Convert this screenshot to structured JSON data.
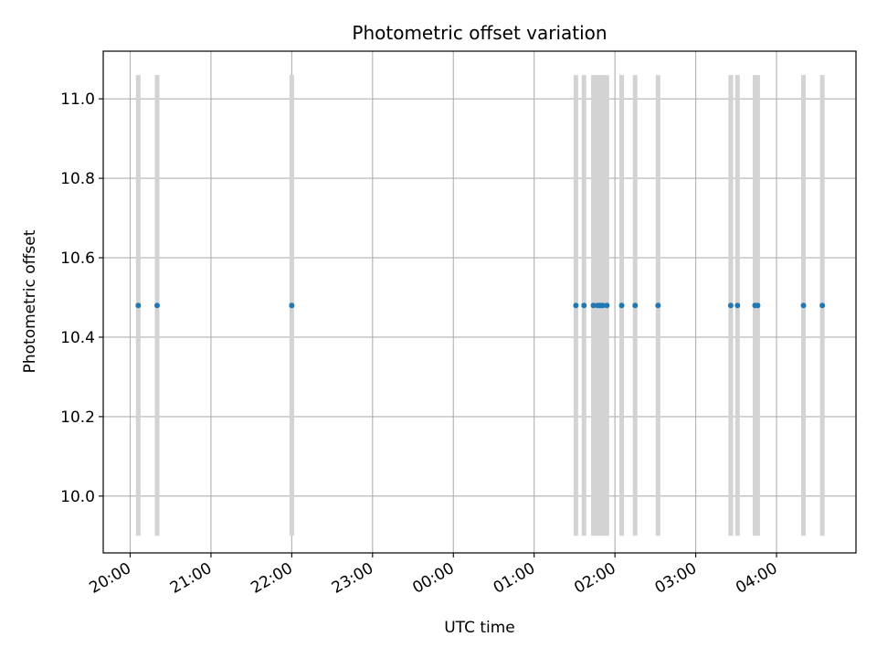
{
  "chart_data": {
    "type": "scatter",
    "title": "Photometric offset variation",
    "xlabel": "UTC time",
    "ylabel": "Photometric offset",
    "grid": true,
    "x_ticks": [
      "20:00",
      "21:00",
      "22:00",
      "23:00",
      "00:00",
      "01:00",
      "02:00",
      "03:00",
      "04:00"
    ],
    "xlim": [
      "19:40",
      "04:59"
    ],
    "y_ticks": [
      "10.0",
      "10.2",
      "10.4",
      "10.6",
      "10.8",
      "11.0"
    ],
    "ylim": [
      9.857,
      11.12
    ],
    "point_color": "#1f77b4",
    "error_bar_color": "#d3d3d3",
    "points": [
      {
        "x": "20:06",
        "y": 10.48,
        "y_low": 9.9,
        "y_high": 11.06
      },
      {
        "x": "20:20",
        "y": 10.48,
        "y_low": 9.9,
        "y_high": 11.06
      },
      {
        "x": "22:00",
        "y": 10.48,
        "y_low": 9.9,
        "y_high": 11.06
      },
      {
        "x": "01:31",
        "y": 10.48,
        "y_low": 9.9,
        "y_high": 11.06
      },
      {
        "x": "01:37",
        "y": 10.48,
        "y_low": 9.9,
        "y_high": 11.06
      },
      {
        "x": "01:44",
        "y": 10.48,
        "y_low": 9.9,
        "y_high": 11.06
      },
      {
        "x": "01:47",
        "y": 10.48,
        "y_low": 9.9,
        "y_high": 11.06
      },
      {
        "x": "01:49",
        "y": 10.48,
        "y_low": 9.9,
        "y_high": 11.06
      },
      {
        "x": "01:51",
        "y": 10.48,
        "y_low": 9.9,
        "y_high": 11.06
      },
      {
        "x": "01:54",
        "y": 10.48,
        "y_low": 9.9,
        "y_high": 11.06
      },
      {
        "x": "02:05",
        "y": 10.48,
        "y_low": 9.9,
        "y_high": 11.06
      },
      {
        "x": "02:15",
        "y": 10.48,
        "y_low": 9.9,
        "y_high": 11.06
      },
      {
        "x": "02:32",
        "y": 10.48,
        "y_low": 9.9,
        "y_high": 11.06
      },
      {
        "x": "03:26",
        "y": 10.48,
        "y_low": 9.9,
        "y_high": 11.06
      },
      {
        "x": "03:31",
        "y": 10.48,
        "y_low": 9.9,
        "y_high": 11.06
      },
      {
        "x": "03:44",
        "y": 10.48,
        "y_low": 9.9,
        "y_high": 11.06
      },
      {
        "x": "03:46",
        "y": 10.48,
        "y_low": 9.9,
        "y_high": 11.06
      },
      {
        "x": "04:20",
        "y": 10.48,
        "y_low": 9.9,
        "y_high": 11.06
      },
      {
        "x": "04:34",
        "y": 10.48,
        "y_low": 9.9,
        "y_high": 11.06
      }
    ]
  }
}
